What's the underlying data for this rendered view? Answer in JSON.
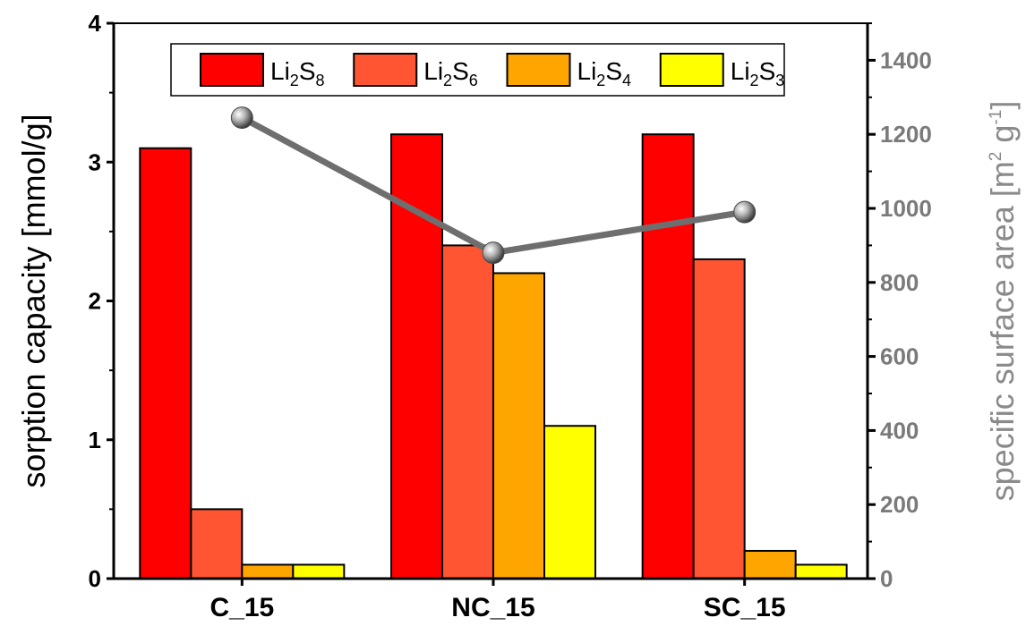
{
  "chart_data": {
    "type": "bar",
    "categories": [
      "C_15",
      "NC_15",
      "SC_15"
    ],
    "series": [
      {
        "name": "Li2S8",
        "label_parts": [
          "Li",
          "2",
          "S",
          "8"
        ],
        "color": "#ff0000",
        "values": [
          3.1,
          3.2,
          3.2
        ]
      },
      {
        "name": "Li2S6",
        "label_parts": [
          "Li",
          "2",
          "S",
          "6"
        ],
        "color": "#ff5533",
        "values": [
          0.5,
          2.4,
          2.3
        ]
      },
      {
        "name": "Li2S4",
        "label_parts": [
          "Li",
          "2",
          "S",
          "4"
        ],
        "color": "#ffa500",
        "values": [
          0.1,
          2.2,
          0.2
        ]
      },
      {
        "name": "Li2S3",
        "label_parts": [
          "Li",
          "2",
          "S",
          "3"
        ],
        "color": "#ffff00",
        "values": [
          0.1,
          1.1,
          0.1
        ]
      }
    ],
    "secondary_series": {
      "type": "line",
      "axis": "right",
      "color": "#6e6e6e",
      "values": [
        1245,
        880,
        990
      ]
    },
    "ylabel": "sorption capacity [mmol/g]",
    "y2label_parts": [
      "specific surface area [m",
      "2",
      " g",
      "-1",
      "]"
    ],
    "ylim": [
      0,
      4
    ],
    "yticks": [
      "0",
      "1",
      "2",
      "3",
      "4"
    ],
    "y2lim": [
      0,
      1500
    ],
    "y2ticks": [
      "0",
      "200",
      "400",
      "600",
      "800",
      "1000",
      "1200",
      "1400"
    ],
    "legend_position": "top",
    "grid": false
  }
}
